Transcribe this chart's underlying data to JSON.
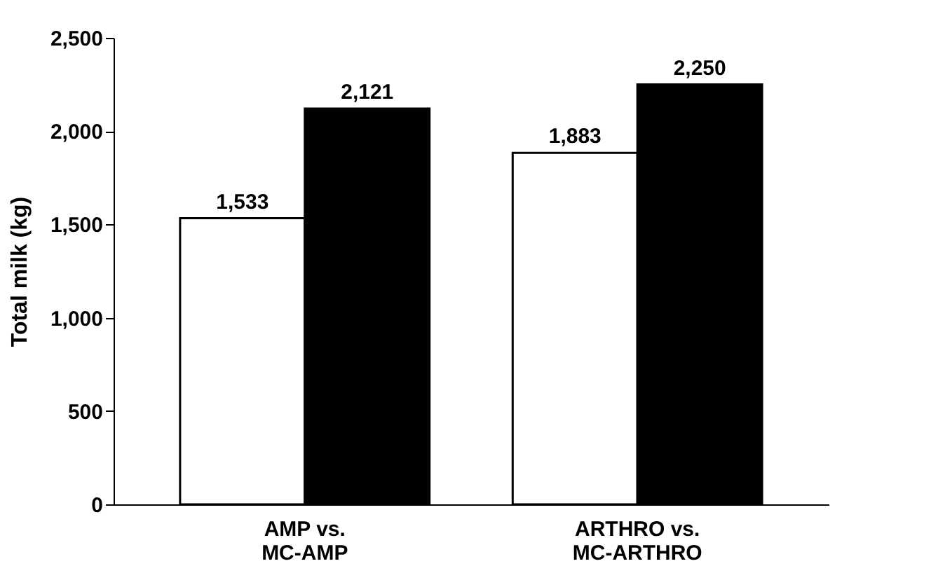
{
  "chart_data": {
    "type": "bar",
    "ylabel": "Total milk (kg)",
    "categories": [
      "AMP vs. MC-AMP",
      "ARTHRO vs. MC-ARTHRO"
    ],
    "series": [
      {
        "color": "#ffffff",
        "values": [
          1533,
          1883
        ],
        "value_labels": [
          "1,533",
          "1,883"
        ]
      },
      {
        "color": "#000000",
        "values": [
          2121,
          2250
        ],
        "value_labels": [
          "2,121",
          "2,250"
        ]
      }
    ],
    "ylim": [
      0,
      2500
    ],
    "yticks": [
      0,
      {
        "value": 500,
        "label": "500"
      },
      {
        "value": 1000,
        "label": "1,000"
      },
      {
        "value": 1500,
        "label": "1,500"
      },
      {
        "value": 2000,
        "label": "2,000"
      },
      {
        "value": 2500,
        "label": "2,500"
      }
    ],
    "grid": false,
    "legend": false
  }
}
